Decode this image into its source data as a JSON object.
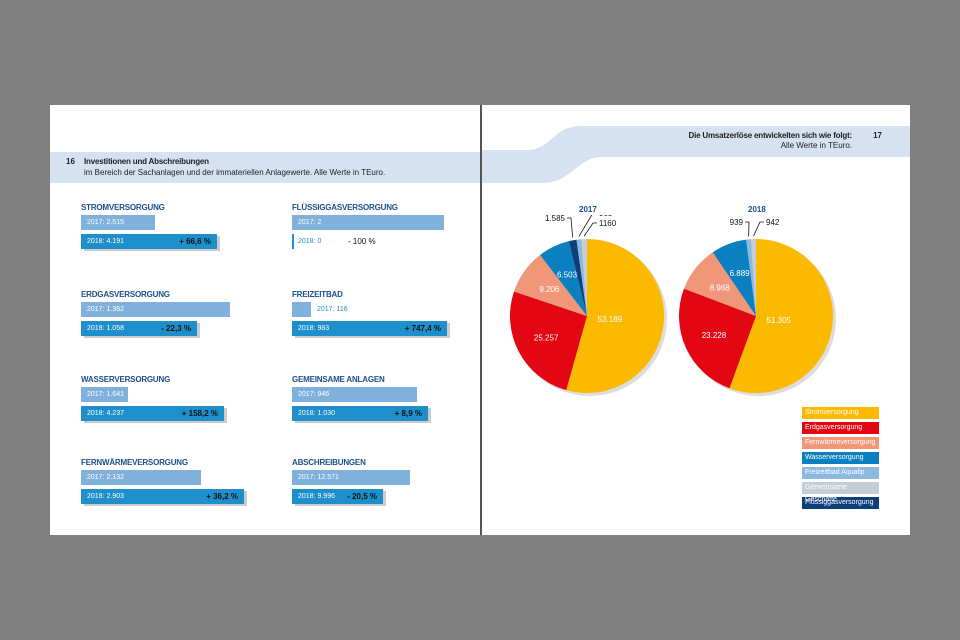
{
  "left": {
    "page_number": "16",
    "title": "Investitionen und Abschreibungen",
    "subtitle": "im Bereich der Sachanlagen und der immateriellen Anlagewerte. Alle Werte in TEuro.",
    "sections": [
      {
        "title": "STROMVERSORGUNG",
        "y2017": "2017: 2.515",
        "y2018": "2018: 4.191",
        "change": "+ 66,6 %"
      },
      {
        "title": "ERDGASVERSORGUNG",
        "y2017": "2017: 1.362",
        "y2018": "2018: 1.058",
        "change": "- 22,3 %"
      },
      {
        "title": "WASSERVERSORGUNG",
        "y2017": "2017: 1.641",
        "y2018": "2018: 4.237",
        "change": "+ 158,2 %"
      },
      {
        "title": "FERNWÄRMEVERSORGUNG",
        "y2017": "2017: 2.132",
        "y2018": "2018: 2.903",
        "change": "+ 36,2 %"
      },
      {
        "title": "FLÜSSIGGASVERSORGUNG",
        "y2017": "2017: 2",
        "y2018": "2018: 0",
        "change": "- 100 %"
      },
      {
        "title": "FREIZEITBAD",
        "y2017": "2017: 116",
        "y2018": "2018: 983",
        "change": "+ 747,4 %"
      },
      {
        "title": "GEMEINSAME ANLAGEN",
        "y2017": "2017: 946",
        "y2018": "2018: 1.030",
        "change": "+ 8,9 %"
      },
      {
        "title": "ABSCHREIBUNGEN",
        "y2017": "2017: 12.571",
        "y2018": "2018: 9.996",
        "change": "- 20,5 %"
      }
    ]
  },
  "right": {
    "page_number": "17",
    "title": "Die Umsatzerlöse entwickelten sich wie folgt:",
    "subtitle": "Alle Werte in TEuro."
  },
  "chart_data": [
    {
      "type": "pie",
      "title": "2017",
      "labels": [
        "Stromversorgung",
        "Erdgasversorgung",
        "Fernwärmeversorgung",
        "Wasserversorgung",
        "Flüssiggasversorgung",
        "Freizeitbad Aqualip",
        "Gemeinsame Geschäfte"
      ],
      "values": [
        53189,
        25257,
        9206,
        6503,
        1585,
        965,
        1160
      ],
      "value_labels": [
        "53.189",
        "25.257",
        "9.206",
        "6.503",
        "1.585",
        "965",
        "1160"
      ]
    },
    {
      "type": "pie",
      "title": "2018",
      "labels": [
        "Stromversorgung",
        "Erdgasversorgung",
        "Fernwärmeversorgung",
        "Wasserversorgung",
        "Freizeitbad Aqualip",
        "Gemeinsame Geschäfte"
      ],
      "values": [
        51305,
        23228,
        8968,
        6889,
        939,
        942
      ],
      "value_labels": [
        "51.305",
        "23.228",
        "8.968",
        "6.889",
        "939",
        "942"
      ]
    }
  ],
  "legend": [
    {
      "label": "Stromversorgung",
      "color": "#fbb900"
    },
    {
      "label": "Erdgasversorgung",
      "color": "#e30613"
    },
    {
      "label": "Fernwärmeversorgung",
      "color": "#f0977a"
    },
    {
      "label": "Wasserversorgung",
      "color": "#0a80c0"
    },
    {
      "label": "Freizeitbad Aqualip",
      "color": "#8db8e0"
    },
    {
      "label": "Gemeinsame Geschäfte",
      "color": "#c5cdd6"
    },
    {
      "label": "Flüssiggasversorgung",
      "color": "#0d3f7a"
    }
  ]
}
